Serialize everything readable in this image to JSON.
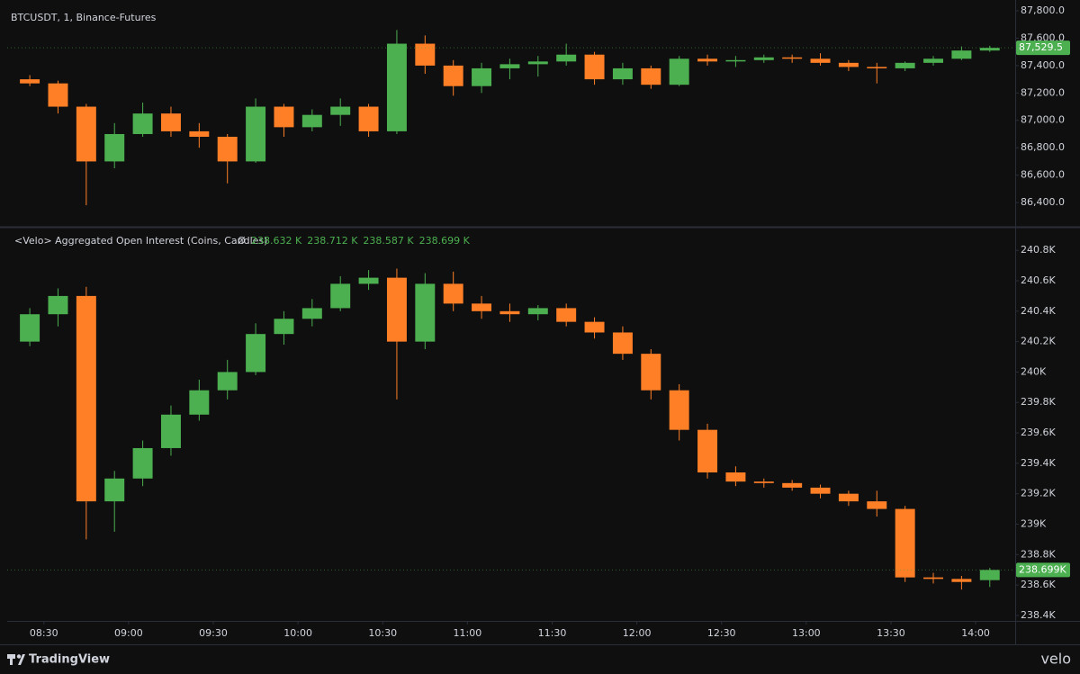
{
  "chart_data": [
    {
      "type": "candlestick",
      "title": "BTCUSDT, 1, Binance-Futures",
      "up_color": "#4caf50",
      "down_color": "#ff7f27",
      "grid": false,
      "x": [
        "08:20",
        "08:30",
        "08:40",
        "08:50",
        "09:00",
        "09:10",
        "09:20",
        "09:30",
        "09:40",
        "09:50",
        "10:00",
        "10:10",
        "10:20",
        "10:30",
        "10:40",
        "10:50",
        "11:00",
        "11:10",
        "11:20",
        "11:30",
        "11:40",
        "11:50",
        "12:00",
        "12:10",
        "12:20",
        "12:30",
        "12:40",
        "12:50",
        "13:00",
        "13:10",
        "13:20",
        "13:30",
        "13:40",
        "13:50",
        "14:00"
      ],
      "open": [
        87300,
        87270,
        87100,
        86700,
        86900,
        87050,
        86920,
        86880,
        86700,
        87100,
        86950,
        87040,
        87100,
        86920,
        87560,
        87400,
        87250,
        87380,
        87410,
        87430,
        87480,
        87300,
        87380,
        87260,
        87450,
        87430,
        87440,
        87460,
        87450,
        87420,
        87390,
        87380,
        87420,
        87450,
        87510
      ],
      "high": [
        87330,
        87290,
        87120,
        86980,
        87130,
        87100,
        86980,
        86900,
        87160,
        87120,
        87080,
        87160,
        87120,
        87660,
        87620,
        87440,
        87420,
        87450,
        87470,
        87560,
        87500,
        87420,
        87400,
        87470,
        87480,
        87470,
        87480,
        87480,
        87490,
        87440,
        87420,
        87430,
        87470,
        87540,
        87545
      ],
      "low": [
        87250,
        87050,
        86380,
        86650,
        86880,
        86880,
        86800,
        86540,
        86690,
        86880,
        86920,
        86960,
        86880,
        86900,
        87340,
        87180,
        87200,
        87300,
        87320,
        87400,
        87260,
        87260,
        87230,
        87250,
        87400,
        87390,
        87420,
        87420,
        87400,
        87360,
        87270,
        87360,
        87400,
        87440,
        87500
      ],
      "close": [
        87270,
        87100,
        86700,
        86900,
        87050,
        86920,
        86880,
        86700,
        87100,
        86950,
        87040,
        87100,
        86920,
        87560,
        87400,
        87250,
        87380,
        87410,
        87430,
        87480,
        87300,
        87380,
        87260,
        87450,
        87430,
        87440,
        87460,
        87450,
        87420,
        87390,
        87380,
        87420,
        87450,
        87510,
        87529.5
      ],
      "last_price": {
        "value": 87529.5,
        "label": "87,529.5"
      },
      "xlim": [
        "08:17",
        "14:14"
      ],
      "ylim": [
        86236,
        87879
      ],
      "yticks": [
        {
          "value": 86400,
          "label": "86,400.0"
        },
        {
          "value": 86600,
          "label": "86,600.0"
        },
        {
          "value": 86800,
          "label": "86,800.0"
        },
        {
          "value": 87000,
          "label": "87,000.0"
        },
        {
          "value": 87200,
          "label": "87,200.0"
        },
        {
          "value": 87400,
          "label": "87,400.0"
        },
        {
          "value": 87600,
          "label": "87,600.0"
        },
        {
          "value": 87800,
          "label": "87,800.0"
        }
      ]
    },
    {
      "type": "candlestick",
      "title": "<Velo> Aggregated Open Interest (Coins, Candles)",
      "symbol": "Ø",
      "legend_values": [
        "238.632 K",
        "238.712 K",
        "238.587 K",
        "238.699 K"
      ],
      "up_color": "#4caf50",
      "down_color": "#ff7f27",
      "grid": false,
      "x": [
        "08:20",
        "08:30",
        "08:40",
        "08:50",
        "09:00",
        "09:10",
        "09:20",
        "09:30",
        "09:40",
        "09:50",
        "10:00",
        "10:10",
        "10:20",
        "10:30",
        "10:40",
        "10:50",
        "11:00",
        "11:10",
        "11:20",
        "11:30",
        "11:40",
        "11:50",
        "12:00",
        "12:10",
        "12:20",
        "12:30",
        "12:40",
        "12:50",
        "13:00",
        "13:10",
        "13:20",
        "13:30",
        "13:40",
        "13:50",
        "14:00"
      ],
      "open": [
        240.2,
        240.38,
        240.5,
        239.15,
        239.3,
        239.5,
        239.72,
        239.88,
        240.0,
        240.25,
        240.35,
        240.42,
        240.58,
        240.62,
        240.2,
        240.58,
        240.45,
        240.4,
        240.38,
        240.42,
        240.33,
        240.26,
        240.12,
        239.88,
        239.62,
        239.34,
        239.28,
        239.27,
        239.24,
        239.2,
        239.15,
        239.1,
        238.65,
        238.64,
        238.632
      ],
      "high": [
        240.42,
        240.55,
        240.56,
        239.35,
        239.55,
        239.78,
        239.95,
        240.08,
        240.32,
        240.4,
        240.48,
        240.63,
        240.67,
        240.68,
        240.65,
        240.66,
        240.5,
        240.45,
        240.44,
        240.45,
        240.36,
        240.3,
        240.15,
        239.92,
        239.66,
        239.38,
        239.3,
        239.29,
        239.26,
        239.22,
        239.22,
        239.12,
        238.68,
        238.66,
        238.712
      ],
      "low": [
        240.17,
        240.3,
        238.9,
        238.95,
        239.25,
        239.45,
        239.68,
        239.82,
        239.98,
        240.18,
        240.3,
        240.4,
        240.54,
        239.82,
        240.15,
        240.4,
        240.35,
        240.33,
        240.34,
        240.3,
        240.22,
        240.08,
        239.82,
        239.55,
        239.3,
        239.25,
        239.24,
        239.22,
        239.17,
        239.12,
        239.05,
        238.62,
        238.61,
        238.57,
        238.587
      ],
      "close": [
        240.38,
        240.5,
        239.15,
        239.3,
        239.5,
        239.72,
        239.88,
        240.0,
        240.25,
        240.35,
        240.42,
        240.58,
        240.62,
        240.2,
        240.58,
        240.45,
        240.4,
        240.38,
        240.42,
        240.33,
        240.26,
        240.12,
        239.88,
        239.62,
        239.34,
        239.28,
        239.27,
        239.24,
        239.2,
        239.15,
        239.1,
        238.65,
        238.64,
        238.62,
        238.699
      ],
      "last_price": {
        "value": 238.699,
        "label": "238.699K"
      },
      "xlim": [
        "08:17",
        "14:14"
      ],
      "xticks": [
        "08:30",
        "09:00",
        "09:30",
        "10:00",
        "10:30",
        "11:00",
        "11:30",
        "12:00",
        "12:30",
        "13:00",
        "13:30",
        "14:00"
      ],
      "ylim": [
        238.364,
        240.949
      ],
      "yticks": [
        {
          "value": 238.4,
          "label": "238.4K"
        },
        {
          "value": 238.6,
          "label": "238.6K"
        },
        {
          "value": 238.8,
          "label": "238.8K"
        },
        {
          "value": 239,
          "label": "239K"
        },
        {
          "value": 239.2,
          "label": "239.2K"
        },
        {
          "value": 239.4,
          "label": "239.4K"
        },
        {
          "value": 239.6,
          "label": "239.6K"
        },
        {
          "value": 239.8,
          "label": "239.8K"
        },
        {
          "value": 240,
          "label": "240K"
        },
        {
          "value": 240.2,
          "label": "240.2K"
        },
        {
          "value": 240.4,
          "label": "240.4K"
        },
        {
          "value": 240.6,
          "label": "240.6K"
        },
        {
          "value": 240.8,
          "label": "240.8K"
        }
      ]
    }
  ],
  "footer": {
    "brand": "TradingView",
    "source": "velo"
  }
}
